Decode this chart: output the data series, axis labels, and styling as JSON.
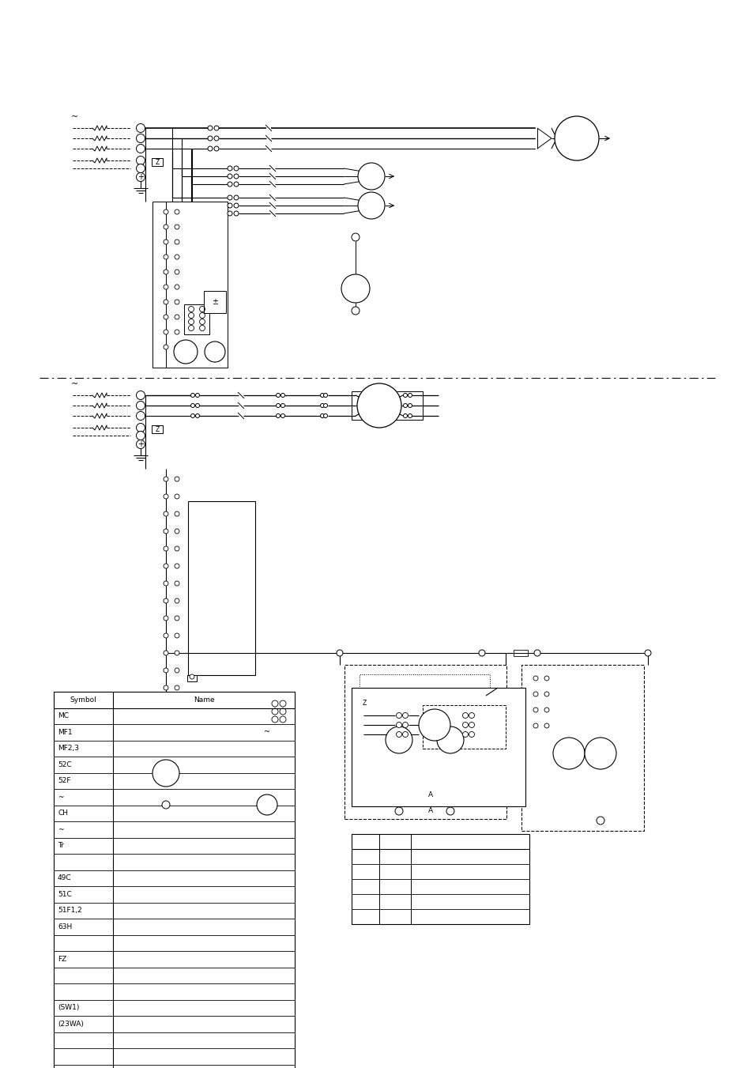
{
  "bg_color": "#ffffff",
  "fig_width": 9.54,
  "fig_height": 13.51,
  "symbol_rows": [
    "MC",
    "MF1",
    "MF2,3",
    "52C",
    "52F",
    "~",
    "CH",
    "~",
    "Tr",
    "",
    "49C",
    "51C",
    "51F1,2",
    "63H",
    "",
    "FZ",
    "",
    "",
    "(SW1)",
    "(23WA)",
    "",
    "",
    ""
  ]
}
